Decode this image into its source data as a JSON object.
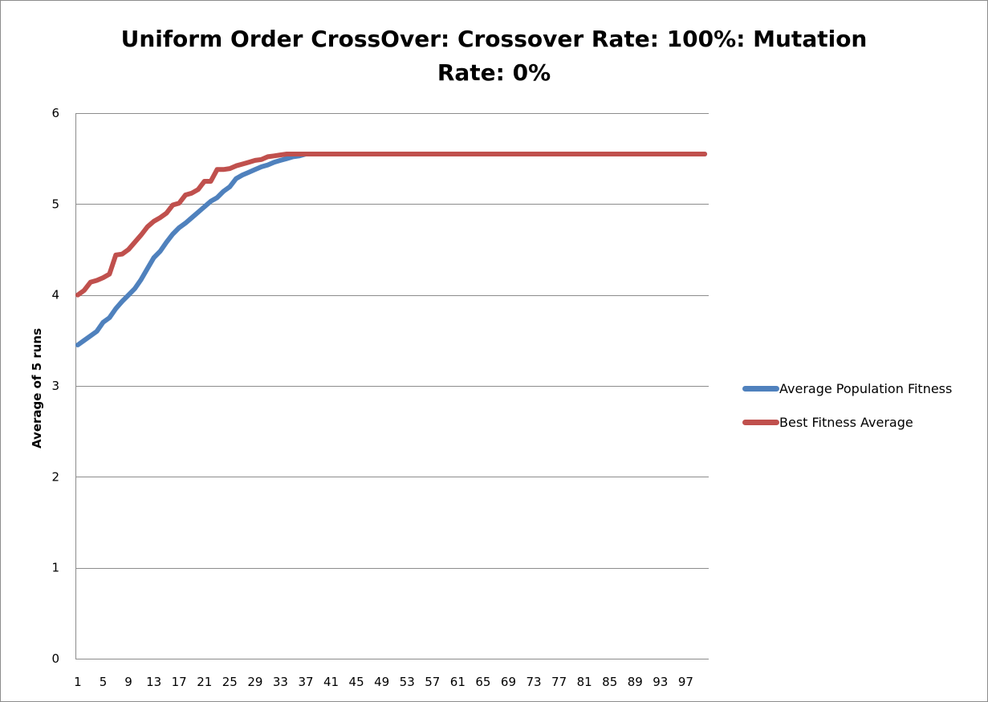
{
  "chart_data": {
    "type": "line",
    "title": "Uniform Order CrossOver: Crossover Rate: 100%: Mutation Rate: 0%",
    "title_lines": [
      "Uniform Order CrossOver: Crossover Rate: 100%: Mutation",
      "Rate: 0%"
    ],
    "xlabel": "",
    "ylabel": "Average of 5 runs",
    "ylim": [
      0,
      6
    ],
    "yticks": [
      0,
      1,
      2,
      3,
      4,
      5,
      6
    ],
    "xlim": [
      1,
      100
    ],
    "xtick_labels": [
      "1",
      "5",
      "9",
      "13",
      "17",
      "21",
      "25",
      "29",
      "33",
      "37",
      "41",
      "45",
      "49",
      "53",
      "57",
      "61",
      "65",
      "69",
      "73",
      "77",
      "81",
      "85",
      "89",
      "93",
      "97"
    ],
    "grid": "horizontal",
    "legend_position": "right",
    "series": [
      {
        "name": "Average Population Fitness",
        "color": "#4f81bd",
        "values": [
          3.45,
          3.5,
          3.55,
          3.6,
          3.7,
          3.75,
          3.85,
          3.93,
          4.0,
          4.07,
          4.17,
          4.29,
          4.41,
          4.48,
          4.58,
          4.67,
          4.74,
          4.79,
          4.85,
          4.91,
          4.97,
          5.03,
          5.07,
          5.14,
          5.19,
          5.28,
          5.32,
          5.35,
          5.38,
          5.41,
          5.43,
          5.46,
          5.48,
          5.5,
          5.52,
          5.53,
          5.55,
          5.55,
          5.55,
          5.55,
          5.55,
          5.55,
          5.55,
          5.55,
          5.55,
          5.55,
          5.55,
          5.55,
          5.55,
          5.55,
          5.55,
          5.55,
          5.55,
          5.55,
          5.55,
          5.55,
          5.55,
          5.55,
          5.55,
          5.55,
          5.55,
          5.55,
          5.55,
          5.55,
          5.55,
          5.55,
          5.55,
          5.55,
          5.55,
          5.55,
          5.55,
          5.55,
          5.55,
          5.55,
          5.55,
          5.55,
          5.55,
          5.55,
          5.55,
          5.55,
          5.55,
          5.55,
          5.55,
          5.55,
          5.55,
          5.55,
          5.55,
          5.55,
          5.55,
          5.55,
          5.55,
          5.55,
          5.55,
          5.55,
          5.55,
          5.55,
          5.55,
          5.55,
          5.55,
          5.55
        ]
      },
      {
        "name": "Best Fitness Average",
        "color": "#c0504d",
        "values": [
          4.0,
          4.05,
          4.14,
          4.16,
          4.19,
          4.23,
          4.44,
          4.45,
          4.5,
          4.58,
          4.66,
          4.75,
          4.81,
          4.85,
          4.9,
          4.99,
          5.01,
          5.1,
          5.12,
          5.16,
          5.25,
          5.25,
          5.38,
          5.38,
          5.39,
          5.42,
          5.44,
          5.46,
          5.48,
          5.49,
          5.52,
          5.53,
          5.54,
          5.55,
          5.55,
          5.55,
          5.55,
          5.55,
          5.55,
          5.55,
          5.55,
          5.55,
          5.55,
          5.55,
          5.55,
          5.55,
          5.55,
          5.55,
          5.55,
          5.55,
          5.55,
          5.55,
          5.55,
          5.55,
          5.55,
          5.55,
          5.55,
          5.55,
          5.55,
          5.55,
          5.55,
          5.55,
          5.55,
          5.55,
          5.55,
          5.55,
          5.55,
          5.55,
          5.55,
          5.55,
          5.55,
          5.55,
          5.55,
          5.55,
          5.55,
          5.55,
          5.55,
          5.55,
          5.55,
          5.55,
          5.55,
          5.55,
          5.55,
          5.55,
          5.55,
          5.55,
          5.55,
          5.55,
          5.55,
          5.55,
          5.55,
          5.55,
          5.55,
          5.55,
          5.55,
          5.55,
          5.55,
          5.55,
          5.55,
          5.55
        ]
      }
    ]
  }
}
